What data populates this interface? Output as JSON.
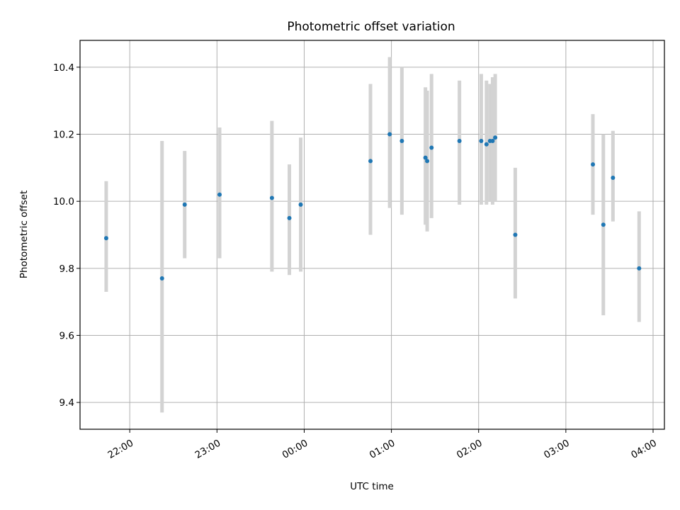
{
  "chart_data": {
    "type": "scatter",
    "title": "Photometric offset variation",
    "xlabel": "UTC time",
    "ylabel": "Photometric offset",
    "x_unit": "hours (UTC, continuous across midnight; 24 = 00:00 next day)",
    "xlim": [
      21.43,
      28.13
    ],
    "ylim": [
      9.32,
      10.48
    ],
    "x_ticks": [
      {
        "value": 22,
        "label": "22:00"
      },
      {
        "value": 23,
        "label": "23:00"
      },
      {
        "value": 24,
        "label": "00:00"
      },
      {
        "value": 25,
        "label": "01:00"
      },
      {
        "value": 26,
        "label": "02:00"
      },
      {
        "value": 27,
        "label": "03:00"
      },
      {
        "value": 28,
        "label": "04:00"
      }
    ],
    "y_ticks": [
      {
        "value": 9.4,
        "label": "9.4"
      },
      {
        "value": 9.6,
        "label": "9.6"
      },
      {
        "value": 9.8,
        "label": "9.8"
      },
      {
        "value": 10.0,
        "label": "10.0"
      },
      {
        "value": 10.2,
        "label": "10.2"
      },
      {
        "value": 10.4,
        "label": "10.4"
      }
    ],
    "grid": true,
    "colors": {
      "point": "#1f77b4",
      "errorbar": "#d3d3d3",
      "grid": "#b0b0b0"
    },
    "points": [
      {
        "x": 21.73,
        "y": 9.89,
        "lo": 9.73,
        "hi": 10.06
      },
      {
        "x": 22.37,
        "y": 9.77,
        "lo": 9.37,
        "hi": 10.18
      },
      {
        "x": 22.63,
        "y": 9.99,
        "lo": 9.83,
        "hi": 10.15
      },
      {
        "x": 23.03,
        "y": 10.02,
        "lo": 9.83,
        "hi": 10.22
      },
      {
        "x": 23.63,
        "y": 10.01,
        "lo": 9.79,
        "hi": 10.24
      },
      {
        "x": 23.83,
        "y": 9.95,
        "lo": 9.78,
        "hi": 10.11
      },
      {
        "x": 23.96,
        "y": 9.99,
        "lo": 9.79,
        "hi": 10.19
      },
      {
        "x": 24.76,
        "y": 10.12,
        "lo": 9.9,
        "hi": 10.35
      },
      {
        "x": 24.98,
        "y": 10.2,
        "lo": 9.98,
        "hi": 10.43
      },
      {
        "x": 25.12,
        "y": 10.18,
        "lo": 9.96,
        "hi": 10.4
      },
      {
        "x": 25.39,
        "y": 10.13,
        "lo": 9.93,
        "hi": 10.34
      },
      {
        "x": 25.41,
        "y": 10.12,
        "lo": 9.91,
        "hi": 10.33
      },
      {
        "x": 25.46,
        "y": 10.16,
        "lo": 9.95,
        "hi": 10.38
      },
      {
        "x": 25.78,
        "y": 10.18,
        "lo": 9.99,
        "hi": 10.36
      },
      {
        "x": 26.03,
        "y": 10.18,
        "lo": 9.99,
        "hi": 10.38
      },
      {
        "x": 26.09,
        "y": 10.17,
        "lo": 9.99,
        "hi": 10.36
      },
      {
        "x": 26.13,
        "y": 10.18,
        "lo": 10.0,
        "hi": 10.35
      },
      {
        "x": 26.16,
        "y": 10.18,
        "lo": 9.99,
        "hi": 10.37
      },
      {
        "x": 26.19,
        "y": 10.19,
        "lo": 10.0,
        "hi": 10.38
      },
      {
        "x": 26.42,
        "y": 9.9,
        "lo": 9.71,
        "hi": 10.1
      },
      {
        "x": 27.31,
        "y": 10.11,
        "lo": 9.96,
        "hi": 10.26
      },
      {
        "x": 27.43,
        "y": 9.93,
        "lo": 9.66,
        "hi": 10.2
      },
      {
        "x": 27.54,
        "y": 10.07,
        "lo": 9.94,
        "hi": 10.21
      },
      {
        "x": 27.84,
        "y": 9.8,
        "lo": 9.64,
        "hi": 9.97
      }
    ]
  }
}
